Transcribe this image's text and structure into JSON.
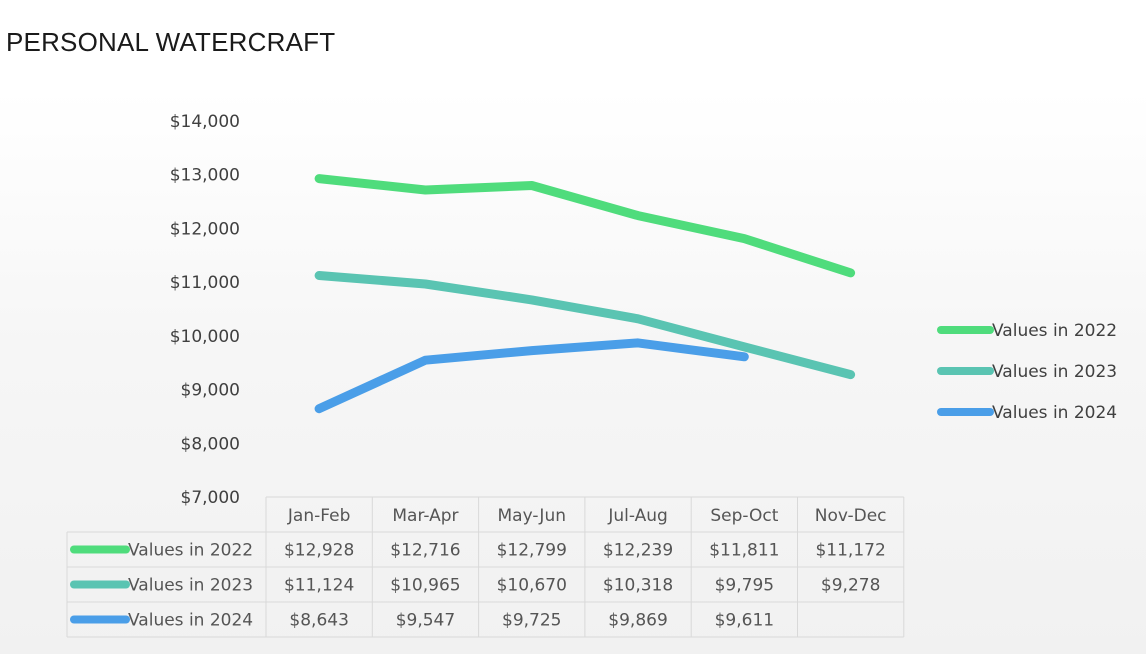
{
  "page": {
    "title": "PERSONAL WATERCRAFT"
  },
  "chart_data": {
    "type": "line",
    "title": "",
    "categories": [
      "Jan-Feb",
      "Mar-Apr",
      "May-Jun",
      "Jul-Aug",
      "Sep-Oct",
      "Nov-Dec"
    ],
    "series": [
      {
        "name": "Values in 2022",
        "color": "#4fdc7c",
        "values": [
          12928,
          12716,
          12799,
          12239,
          11811,
          11172
        ],
        "labels": [
          "$12,928",
          "$12,716",
          "$12,799",
          "$12,239",
          "$11,811",
          "$11,172"
        ]
      },
      {
        "name": "Values in 2023",
        "color": "#5ac4b2",
        "values": [
          11124,
          10965,
          10670,
          10318,
          9795,
          9278
        ],
        "labels": [
          "$11,124",
          "$10,965",
          "$10,670",
          "$10,318",
          "$9,795",
          "$9,278"
        ]
      },
      {
        "name": "Values in 2024",
        "color": "#4a9ee8",
        "values": [
          8643,
          9547,
          9725,
          9869,
          9611,
          null
        ],
        "labels": [
          "$8,643",
          "$9,547",
          "$9,725",
          "$9,869",
          "$9,611",
          ""
        ]
      }
    ],
    "ylim": [
      7000,
      14000
    ],
    "yticks": [
      7000,
      8000,
      9000,
      10000,
      11000,
      12000,
      13000,
      14000
    ],
    "ytick_labels": [
      "$7,000",
      "$8,000",
      "$9,000",
      "$10,000",
      "$11,000",
      "$12,000",
      "$13,000",
      "$14,000"
    ],
    "grid": false,
    "legend": "right",
    "data_table": true
  }
}
